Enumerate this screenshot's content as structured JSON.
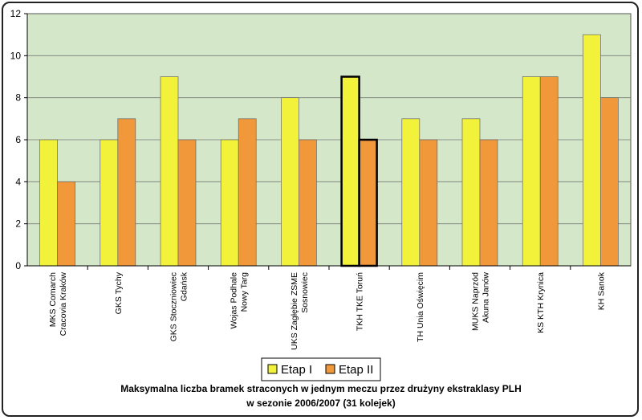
{
  "chart_data": {
    "type": "bar",
    "title_lines": [
      "Maksymalna liczba bramek straconych w jednym meczu przez drużyny ekstraklasy PLH",
      "w sezonie 2006/2007 (31 kolejek)"
    ],
    "categories": [
      [
        "MKS Comarch",
        "Cracovia Kraków"
      ],
      [
        "GKS Tychy"
      ],
      [
        "GKS Stoczniowiec",
        "Gdańsk"
      ],
      [
        "Wojas Podhale",
        "Nowy Targ"
      ],
      [
        "UKS Zagłębie ZSME",
        "Sosnowiec"
      ],
      [
        "TKH TKE Toruń"
      ],
      [
        "TH Unia Oświęcim"
      ],
      [
        "MUKS Naprzód",
        "Akuna Janów"
      ],
      [
        "KS KTH Krynica"
      ],
      [
        "KH Sanok"
      ]
    ],
    "series": [
      {
        "name": "Etap I",
        "color": "#f2f23a",
        "values": [
          6,
          6,
          9,
          6,
          8,
          9,
          7,
          7,
          9,
          11
        ]
      },
      {
        "name": "Etap II",
        "color": "#f0983a",
        "values": [
          4,
          7,
          6,
          7,
          6,
          6,
          6,
          6,
          9,
          8
        ]
      }
    ],
    "highlight_category_index": 5,
    "ylim": [
      0,
      12
    ],
    "yticks": [
      0,
      2,
      4,
      6,
      8,
      10,
      12
    ],
    "grid": true,
    "plot_background": "#d4e8c9",
    "legend_position": "bottom-center"
  }
}
